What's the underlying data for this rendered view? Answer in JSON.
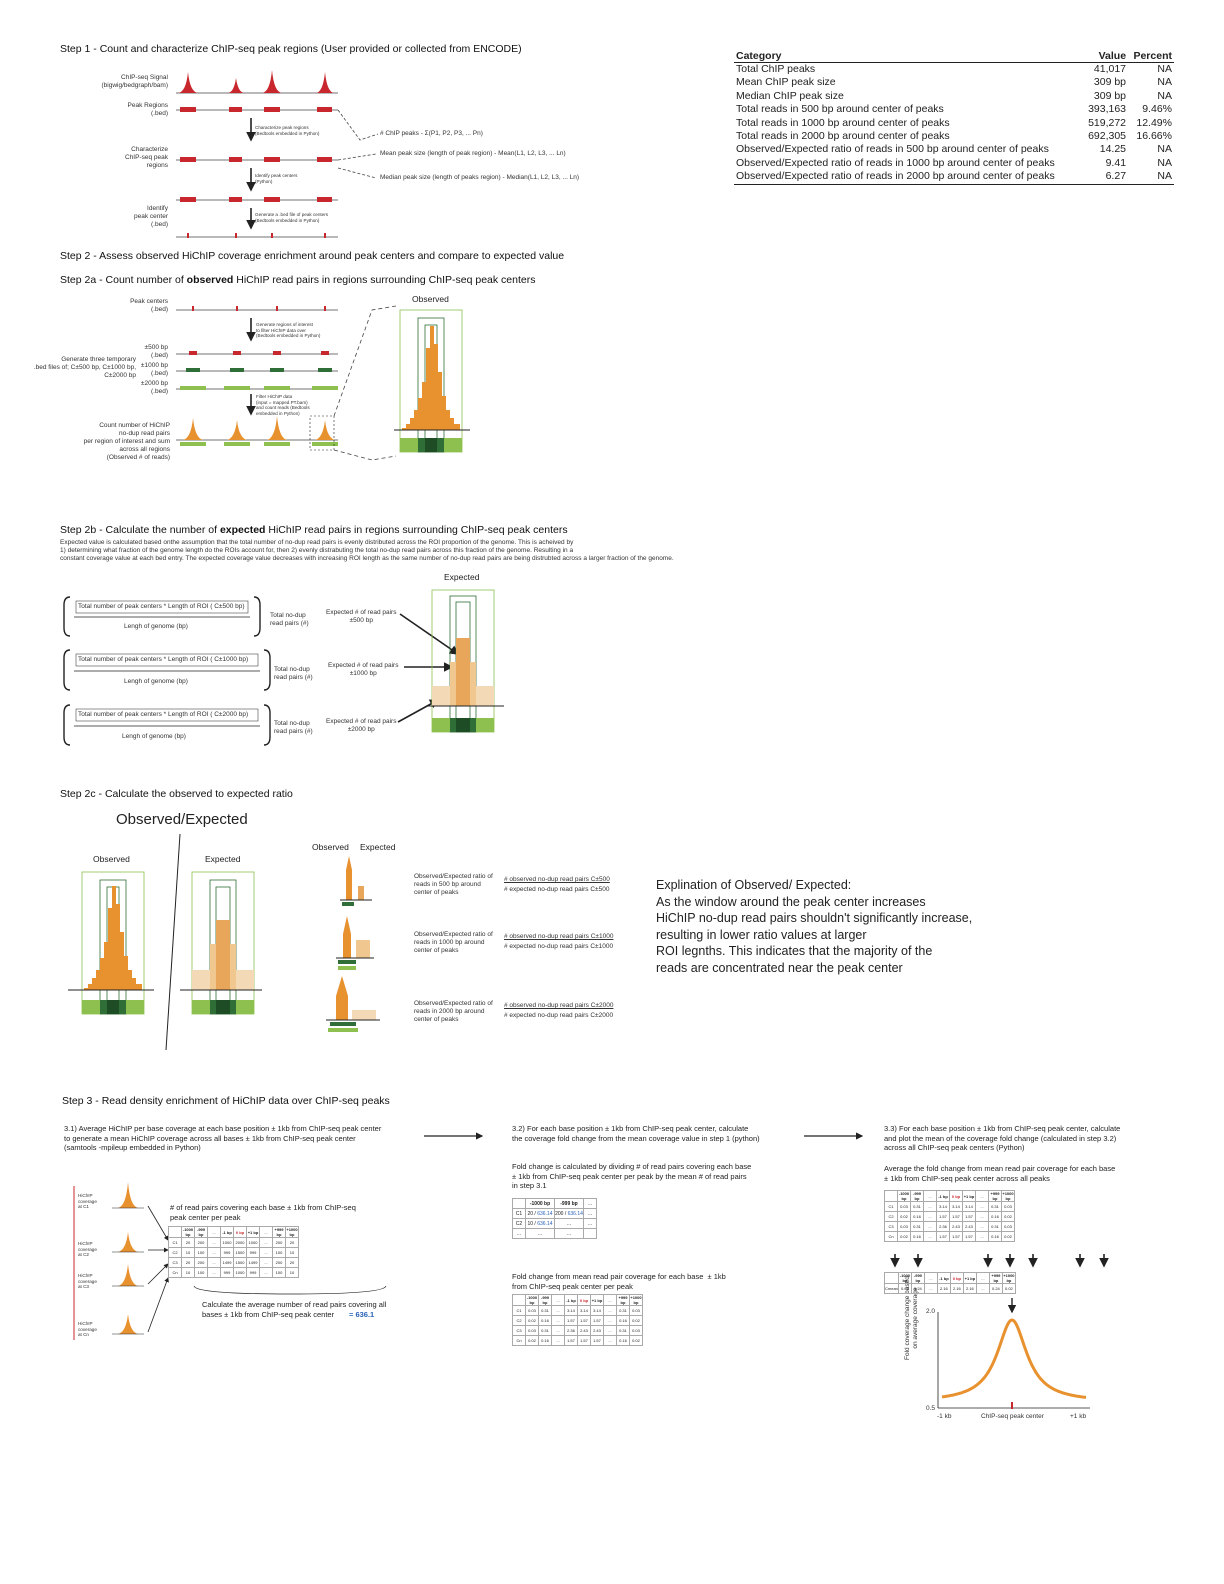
{
  "step1": {
    "title": "Step 1 - Count and characterize ChIP-seq peak regions (User provided or collected from ENCODE)",
    "row_labels": {
      "signal": "ChIP-seq Signal\n(bigwig/bedgraph/bam)",
      "regions": "Peak Regions\n(.bed)",
      "characterize": "Characterize\nChIP-seq peak\nregions",
      "identify": "Identify\npeak center\n(.bed)"
    },
    "arrows": [
      "Characterize peak regions\n(Bedtools embedded in Python)",
      "Identify peak centers\n(Python)",
      "Generate a .bed file of peak centers\n(Bedtools embedded in Python)"
    ],
    "formulas": [
      "# ChIP peaks - Σ(P1, P2, P3, ... Pn)",
      "Mean peak size (length of peak region) - Mean(L1, L2, L3, ... Ln)",
      "Median peak size (length of peaks region) - Median(L1, L2, L3, ... Ln)"
    ]
  },
  "summary": {
    "headers": [
      "Category",
      "Value",
      "Percent"
    ],
    "rows": [
      [
        "Total ChIP peaks",
        "41,017",
        "NA"
      ],
      [
        "Mean ChIP peak size",
        "309 bp",
        "NA"
      ],
      [
        "Median ChIP peak size",
        "309 bp",
        "NA"
      ],
      [
        "Total reads in 500 bp around center of peaks",
        "393,163",
        "9.46%"
      ],
      [
        "Total reads in 1000 bp around center of peaks",
        "519,272",
        "12.49%"
      ],
      [
        "Total reads in 2000 bp around center of peaks",
        "692,305",
        "16.66%"
      ],
      [
        "Observed/Expected ratio of reads in 500 bp around center of peaks",
        "14.25",
        "NA"
      ],
      [
        "Observed/Expected ratio of reads in 1000 bp around center of peaks",
        "9.41",
        "NA"
      ],
      [
        "Observed/Expected ratio of reads in 2000 bp around center of peaks",
        "6.27",
        "NA"
      ]
    ]
  },
  "step2": {
    "title": "Step 2 - Assess observed HiChIP coverage enrichment around peak centers and compare to expected value",
    "a_prefix": "Step 2a - Count number of ",
    "a_bold": "observed",
    "a_suffix": " HiChIP read pairs in regions surrounding ChIP-seq peak centers",
    "peak_centers": "Peak centers\n(.bed)",
    "generate_regions": "Generate regions of interest\nto filter HiChIP data over\n(Bedtools embedded in Python)",
    "temp_files": "Generate three temporary\n.bed files of; C±500 bp, C±1000 bp,\nC±2000 bp",
    "w500": "±500 bp\n(.bed)",
    "w1000": "±1000 bp\n(.bed)",
    "w2000": "±2000 bp\n(.bed)",
    "filter": "Filter HiChIP data\n(input = mapped.PT.bam)\nand count reads (Bedtools\nembedded in Python)",
    "count": "Count number of HiChIP\nno-dup read pairs\nper region of interest and sum\nacross all regions\n(Observed # of reads)",
    "observed": "Observed",
    "b_prefix": "Step 2b - Calculate the number of ",
    "b_bold": "expected",
    "b_suffix": " HiChIP read pairs in regions surrounding ChIP-seq peak centers",
    "b_desc": "Expected value is calculated based onthe assumption that the total number of no-dup read pairs is evenly distributed across the ROI proportion of the genome. This is acheived by\n1) determining what fraction of the genome length do the ROIs account for, then 2) evenly distrabuting the total no-dup read pairs across this fraction of the genome. Resulting in a\nconstant coverage value at each bed entry. The expected coverage value decreases with increasing ROI length as the same number of no-dup read pairs are being distrubted across a larger fraction of the genome.",
    "expected": "Expected",
    "formulas": [
      {
        "num": "Total number of peak centers * Length of ROI ( C±500 bp)",
        "res": "Expected # of read pairs\n±500 bp"
      },
      {
        "num": "Total number of peak centers * Length of ROI ( C±1000 bp)",
        "res": "Expected # of read pairs\n±1000 bp"
      },
      {
        "num": "Total number of peak centers * Length of ROI ( C±2000 bp)",
        "res": "Expected # of read pairs\n±2000 bp"
      }
    ],
    "den": "Lengh of genome (bp)",
    "times": "Total no-dup\nread pairs (#)",
    "c_title": "Step 2c - Calculate the observed to expected ratio",
    "oe_big": "Observed/Expected",
    "oe_small_obs": "Observed",
    "oe_small_exp": "Expected",
    "ratios": [
      {
        "label": "Observed/Expected ratio of\nreads in 500 bp around\ncenter of peaks",
        "num": "# observed no-dup read pairs C±500",
        "den": "# expected no-dup read pairs C±500"
      },
      {
        "label": "Observed/Expected ratio of\nreads in 1000 bp around\ncenter of peaks",
        "num": "# observed no-dup read pairs C±1000",
        "den": "# expected no-dup read pairs C±1000"
      },
      {
        "label": "Observed/Expected ratio of\nreads in 2000 bp around\ncenter of peaks",
        "num": "# observed no-dup read pairs C±2000",
        "den": "# expected no-dup read pairs C±2000"
      }
    ],
    "explanation": "Explination of Observed/ Expected:\nAs the window around the peak center increases\nHiChIP no-dup read pairs shouldn't significantly increase,\nresulting in lower ratio values at larger\nROI legnths. This indicates that the majority of the\nreads are concentrated near the peak center"
  },
  "step3": {
    "title": "Step 3 - Read density enrichment of HiChIP data over ChIP-seq peaks",
    "s31": "3.1) Average HiChIP per base coverage at each base position ± 1kb from ChIP-seq peak center\nto generate a mean HiChIP coverage across all bases ± 1kb from ChIP-seq peak center\n(samtools -mpileup embedded in Python)",
    "s32": "3.2) For each base position ± 1kb from ChIP-seq peak center, calculate\nthe coverage fold change from the mean coverage value in step 1 (python)",
    "s33": "3.3) For each base position ± 1kb from ChIP-seq peak center, calculate\nand plot the mean of the coverage fold change (calculated in step 3.2)\nacross all ChIP-seq peak centers (Python)",
    "hichip_labels": [
      "HiChIP\ncoverage\nat C1",
      "HiChIP\ncoverage\nat C2",
      "HiChIP\ncoverage\nat C3",
      "HiChIP\ncoverage\nat Cn"
    ],
    "reads_cover": "# of read pairs covering each base ± 1kb from ChIP-seq\npeak center per peak",
    "calc_avg": "Calculate the average number of read pairs covering all\nbases ± 1kb from ChIP-seq peak center",
    "avg_value": "= 636.1",
    "fold_desc": "Fold change is calculated by dividing # of read pairs covering each base\n± 1kb from ChIP-seq peak center per peak by the mean # of read pairs\nin step 3.1",
    "fold_table_title": "Fold change from mean read pair coverage for each base  ± 1kb\nfrom ChIP-seq peak center per peak",
    "avg_desc": "Average the fold change from mean read pair coverage for each base\n± 1kb from ChIP-seq peak center across all peaks",
    "plot_ylabel": "Fold coverage change based\non average coverage",
    "plot_x": [
      "-1 kb",
      "ChIP-seq peak center",
      "+1 kb"
    ],
    "plot_y": [
      "2.0",
      "0.5"
    ]
  },
  "colors": {
    "orange": "#e8912f",
    "red": "#c8282d",
    "green": "#8dc04e",
    "dark_green": "#2f6e36",
    "light": "#f3d9b5"
  }
}
